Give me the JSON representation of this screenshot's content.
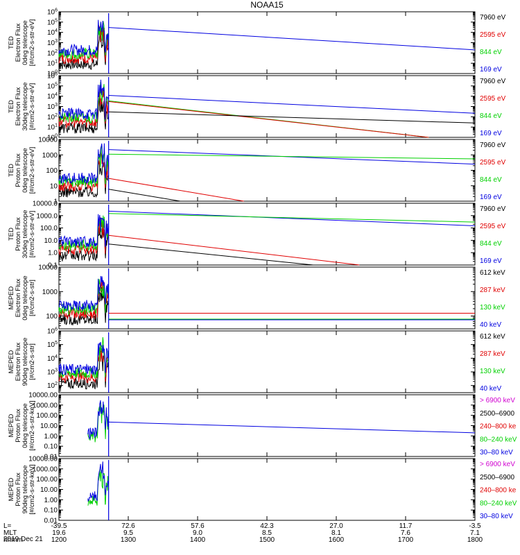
{
  "title": "NOAA15",
  "date_label": "2019 Dec 21",
  "colors": {
    "black": "#000000",
    "red": "#e00000",
    "green": "#00d000",
    "blue": "#0000e0",
    "magenta": "#d000d0"
  },
  "x_axis": {
    "rows": [
      {
        "label": "L=",
        "values": [
          "-39.5",
          "72.6",
          "57.6",
          "42.3",
          "27.0",
          "11.7",
          "-3.5"
        ]
      },
      {
        "label": "MLT",
        "values": [
          "19.6",
          "9.5",
          "9.0",
          "8.5",
          "8.1",
          "7.6",
          "7.1"
        ]
      },
      {
        "label": "hhmm",
        "values": [
          "1200",
          "1300",
          "1400",
          "1500",
          "1600",
          "1700",
          "1800"
        ]
      }
    ]
  },
  "chart_data": [
    {
      "type": "line",
      "ylabel": [
        "TED",
        "Electron Flux",
        "0deg telescope",
        "[#/cm2-s-str-eV]"
      ],
      "ylim": [
        1,
        1000000
      ],
      "log": true,
      "y_tick_labels": [
        "10^0",
        "10^1",
        "10^2",
        "10^3",
        "10^4",
        "10^5",
        "10^6"
      ],
      "legend": [
        {
          "name": "7960 eV",
          "color": "black"
        },
        {
          "name": "2595 eV",
          "color": "red"
        },
        {
          "name": "844 eV",
          "color": "green"
        },
        {
          "name": "169 eV",
          "color": "blue"
        }
      ],
      "series": [
        {
          "name": "169 eV",
          "color": "blue",
          "x": [
            1243,
            1800
          ],
          "y": [
            30000,
            200
          ]
        }
      ]
    },
    {
      "type": "line",
      "ylabel": [
        "TED",
        "Electron Flux",
        "30deg telescope",
        "[#/cm2-s-str-eV]"
      ],
      "ylim": [
        1,
        1000000
      ],
      "log": true,
      "y_tick_labels": [
        "10^0",
        "10^1",
        "10^2",
        "10^3",
        "10^4",
        "10^5",
        "10^6"
      ],
      "legend": [
        {
          "name": "7960 eV",
          "color": "black"
        },
        {
          "name": "2595 eV",
          "color": "red"
        },
        {
          "name": "844 eV",
          "color": "green"
        },
        {
          "name": "169 eV",
          "color": "blue"
        }
      ],
      "series": [
        {
          "name": "169 eV",
          "color": "blue",
          "x": [
            1243,
            1800
          ],
          "y": [
            12000,
            220
          ]
        },
        {
          "name": "844 eV",
          "color": "green",
          "x": [
            1243,
            1720
          ],
          "y": [
            3500,
            1
          ]
        },
        {
          "name": "2595 eV",
          "color": "red",
          "x": [
            1243,
            1720
          ],
          "y": [
            3000,
            1
          ]
        },
        {
          "name": "7960 eV",
          "color": "black",
          "x": [
            1243,
            1800
          ],
          "y": [
            300,
            25
          ]
        }
      ]
    },
    {
      "type": "line",
      "ylabel": [
        "TED",
        "Proton Flux",
        "0deg telescope",
        "[#/cm2-s-str-eV]"
      ],
      "ylim": [
        1,
        10000
      ],
      "log": true,
      "y_tick_labels": [
        "1",
        "10",
        "100",
        "1000",
        "10000"
      ],
      "legend": [
        {
          "name": "7960 eV",
          "color": "black"
        },
        {
          "name": "2595 eV",
          "color": "red"
        },
        {
          "name": "844 eV",
          "color": "green"
        },
        {
          "name": "169 eV",
          "color": "blue"
        }
      ],
      "series": [
        {
          "name": "169 eV",
          "color": "blue",
          "x": [
            1243,
            1800
          ],
          "y": [
            2200,
            250
          ]
        },
        {
          "name": "844 eV",
          "color": "green",
          "x": [
            1243,
            1800
          ],
          "y": [
            1100,
            550
          ]
        },
        {
          "name": "2595 eV",
          "color": "red",
          "x": [
            1243,
            1440
          ],
          "y": [
            30,
            1
          ]
        },
        {
          "name": "7960 eV",
          "color": "black",
          "x": [
            1243,
            1345
          ],
          "y": [
            6,
            1
          ]
        }
      ]
    },
    {
      "type": "line",
      "ylabel": [
        "TED",
        "Proton Flux",
        "30deg telescope",
        "[#/cm2-s-str-eV]"
      ],
      "ylim": [
        0.1,
        10000
      ],
      "log": true,
      "y_tick_labels": [
        "0.1",
        "1.0",
        "10.0",
        "100.0",
        "1000.0",
        "10000.0"
      ],
      "legend": [
        {
          "name": "7960 eV",
          "color": "black"
        },
        {
          "name": "2595 eV",
          "color": "red"
        },
        {
          "name": "844 eV",
          "color": "green"
        },
        {
          "name": "169 eV",
          "color": "blue"
        }
      ],
      "series": [
        {
          "name": "169 eV",
          "color": "blue",
          "x": [
            1243,
            1800
          ],
          "y": [
            2300,
            150
          ]
        },
        {
          "name": "844 eV",
          "color": "green",
          "x": [
            1243,
            1800
          ],
          "y": [
            1500,
            300
          ]
        },
        {
          "name": "2595 eV",
          "color": "red",
          "x": [
            1243,
            1620
          ],
          "y": [
            25,
            0.1
          ]
        },
        {
          "name": "7960 eV",
          "color": "black",
          "x": [
            1243,
            1540
          ],
          "y": [
            5,
            0.1
          ]
        }
      ]
    },
    {
      "type": "line",
      "ylabel": [
        "MEPED",
        "Electron Flux",
        "0deg telescope",
        "[#/cm2-s-str]"
      ],
      "ylim": [
        30,
        10000
      ],
      "log": true,
      "y_tick_labels": [
        "100",
        "1000",
        "10000"
      ],
      "legend": [
        {
          "name": "612 keV",
          "color": "black"
        },
        {
          "name": "287 keV",
          "color": "red"
        },
        {
          "name": "130 keV",
          "color": "green"
        },
        {
          "name": "40 keV",
          "color": "blue"
        }
      ],
      "series": [
        {
          "name": "287 keV",
          "color": "red",
          "x": [
            1243,
            1800
          ],
          "y": [
            130,
            130
          ]
        },
        {
          "name": "130 keV",
          "color": "green",
          "x": [
            1243,
            1800
          ],
          "y": [
            75,
            75
          ]
        },
        {
          "name": "40 keV",
          "color": "blue",
          "x": [
            1243,
            1800
          ],
          "y": [
            70,
            70
          ]
        }
      ]
    },
    {
      "type": "line",
      "ylabel": [
        "MEPED",
        "Electron Flux",
        "90deg telescope",
        "[#/cm2-s-str]"
      ],
      "ylim": [
        30,
        1000000
      ],
      "log": true,
      "y_tick_labels": [
        "10^2",
        "10^3",
        "10^4",
        "10^5",
        "10^6"
      ],
      "legend": [
        {
          "name": "612 keV",
          "color": "black"
        },
        {
          "name": "287 keV",
          "color": "red"
        },
        {
          "name": "130 keV",
          "color": "green"
        },
        {
          "name": "40 keV",
          "color": "blue"
        }
      ],
      "series": []
    },
    {
      "type": "line",
      "ylabel": [
        "MEPED",
        "Proton Flux",
        "0deg telescope",
        "[#/cm2-s-str-keV]"
      ],
      "ylim": [
        0.01,
        10000
      ],
      "log": true,
      "y_tick_labels": [
        "0.01",
        "0.10",
        "1.00",
        "10.00",
        "100.00",
        "1000.00",
        "10000.00"
      ],
      "legend": [
        {
          "name": "> 6900 keV",
          "color": "magenta"
        },
        {
          "name": "2500–6900",
          "color": "black"
        },
        {
          "name": "240–800 ke",
          "color": "red"
        },
        {
          "name": "80–240 keV",
          "color": "green"
        },
        {
          "name": "30–80 keV",
          "color": "blue"
        }
      ],
      "series": [
        {
          "name": "30–80 keV",
          "color": "blue",
          "x": [
            1243,
            1800
          ],
          "y": [
            22,
            2
          ]
        }
      ]
    },
    {
      "type": "line",
      "ylabel": [
        "MEPED",
        "Proton Flux",
        "90deg telescope",
        "[#/cm2-s-str-keV]"
      ],
      "ylim": [
        0.01,
        10000
      ],
      "log": true,
      "y_tick_labels": [
        "0.01",
        "0.10",
        "1.00",
        "10.00",
        "100.00",
        "1000.00",
        "10000.00"
      ],
      "legend": [
        {
          "name": "> 6900 keV",
          "color": "magenta"
        },
        {
          "name": "2500–6900",
          "color": "black"
        },
        {
          "name": "240–800 ke",
          "color": "red"
        },
        {
          "name": "80–240 keV",
          "color": "green"
        },
        {
          "name": "30–80 keV",
          "color": "blue"
        }
      ],
      "series": []
    }
  ]
}
